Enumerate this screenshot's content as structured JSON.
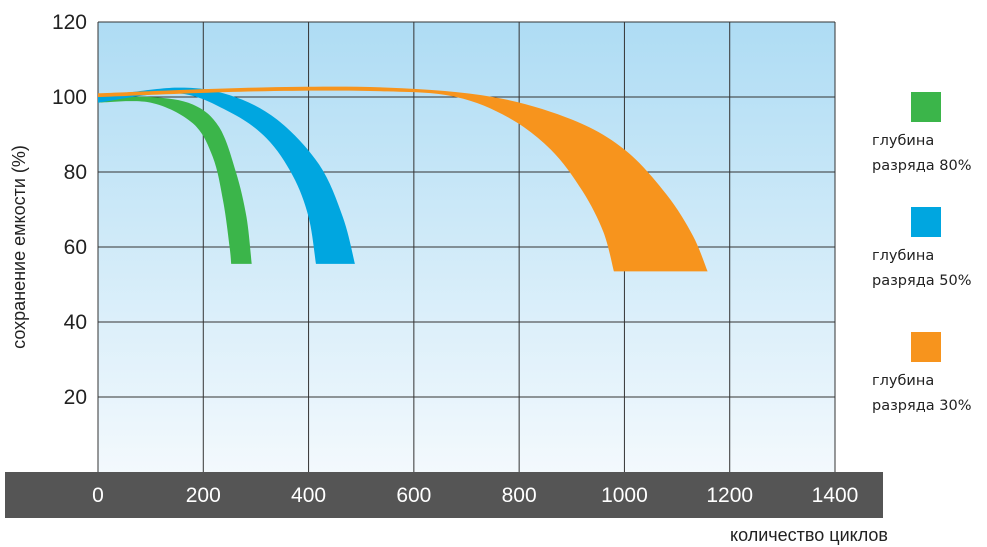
{
  "chart_data": {
    "type": "area",
    "xlabel": "количество циклов",
    "ylabel": "сохранение емкости (%)",
    "xlim": [
      0,
      1400
    ],
    "ylim": [
      0,
      120
    ],
    "x_ticks": [
      "0",
      "200",
      "400",
      "600",
      "800",
      "1000",
      "1200",
      "1400"
    ],
    "y_ticks": [
      "20",
      "40",
      "60",
      "80",
      "100",
      "120"
    ],
    "grid": true,
    "legend_position": "right",
    "series": [
      {
        "name_lines": [
          "глубина",
          "разряда 80%"
        ],
        "color": "#3bb54a",
        "upper": [
          [
            0,
            99.5
          ],
          [
            100,
            100
          ],
          [
            180,
            98
          ],
          [
            230,
            92
          ],
          [
            262,
            80
          ],
          [
            282,
            68
          ],
          [
            292,
            55.5
          ]
        ],
        "lower": [
          [
            0,
            98.5
          ],
          [
            100,
            98.5
          ],
          [
            180,
            93
          ],
          [
            218,
            84
          ],
          [
            238,
            72
          ],
          [
            250,
            60
          ],
          [
            253,
            55.5
          ]
        ]
      },
      {
        "name_lines": [
          "глубина",
          "разряда 50%"
        ],
        "color": "#00a6e0",
        "upper": [
          [
            0,
            100
          ],
          [
            150,
            102.5
          ],
          [
            250,
            100.5
          ],
          [
            340,
            94
          ],
          [
            420,
            82
          ],
          [
            465,
            68
          ],
          [
            488,
            55.5
          ]
        ],
        "lower": [
          [
            0,
            98.5
          ],
          [
            150,
            101
          ],
          [
            250,
            96
          ],
          [
            320,
            89
          ],
          [
            370,
            79
          ],
          [
            400,
            68
          ],
          [
            414,
            55.5
          ]
        ]
      },
      {
        "name_lines": [
          "глубина",
          "разряда 30%"
        ],
        "color": "#f7941d",
        "upper": [
          [
            0,
            101
          ],
          [
            300,
            102.5
          ],
          [
            550,
            102.5
          ],
          [
            750,
            100
          ],
          [
            900,
            94
          ],
          [
            1000,
            86
          ],
          [
            1080,
            74
          ],
          [
            1130,
            63
          ],
          [
            1158,
            53.5
          ]
        ],
        "lower": [
          [
            0,
            100
          ],
          [
            300,
            101.5
          ],
          [
            550,
            101.5
          ],
          [
            680,
            100
          ],
          [
            780,
            94.5
          ],
          [
            860,
            86
          ],
          [
            920,
            75
          ],
          [
            960,
            64
          ],
          [
            980,
            53.5
          ]
        ]
      }
    ]
  }
}
